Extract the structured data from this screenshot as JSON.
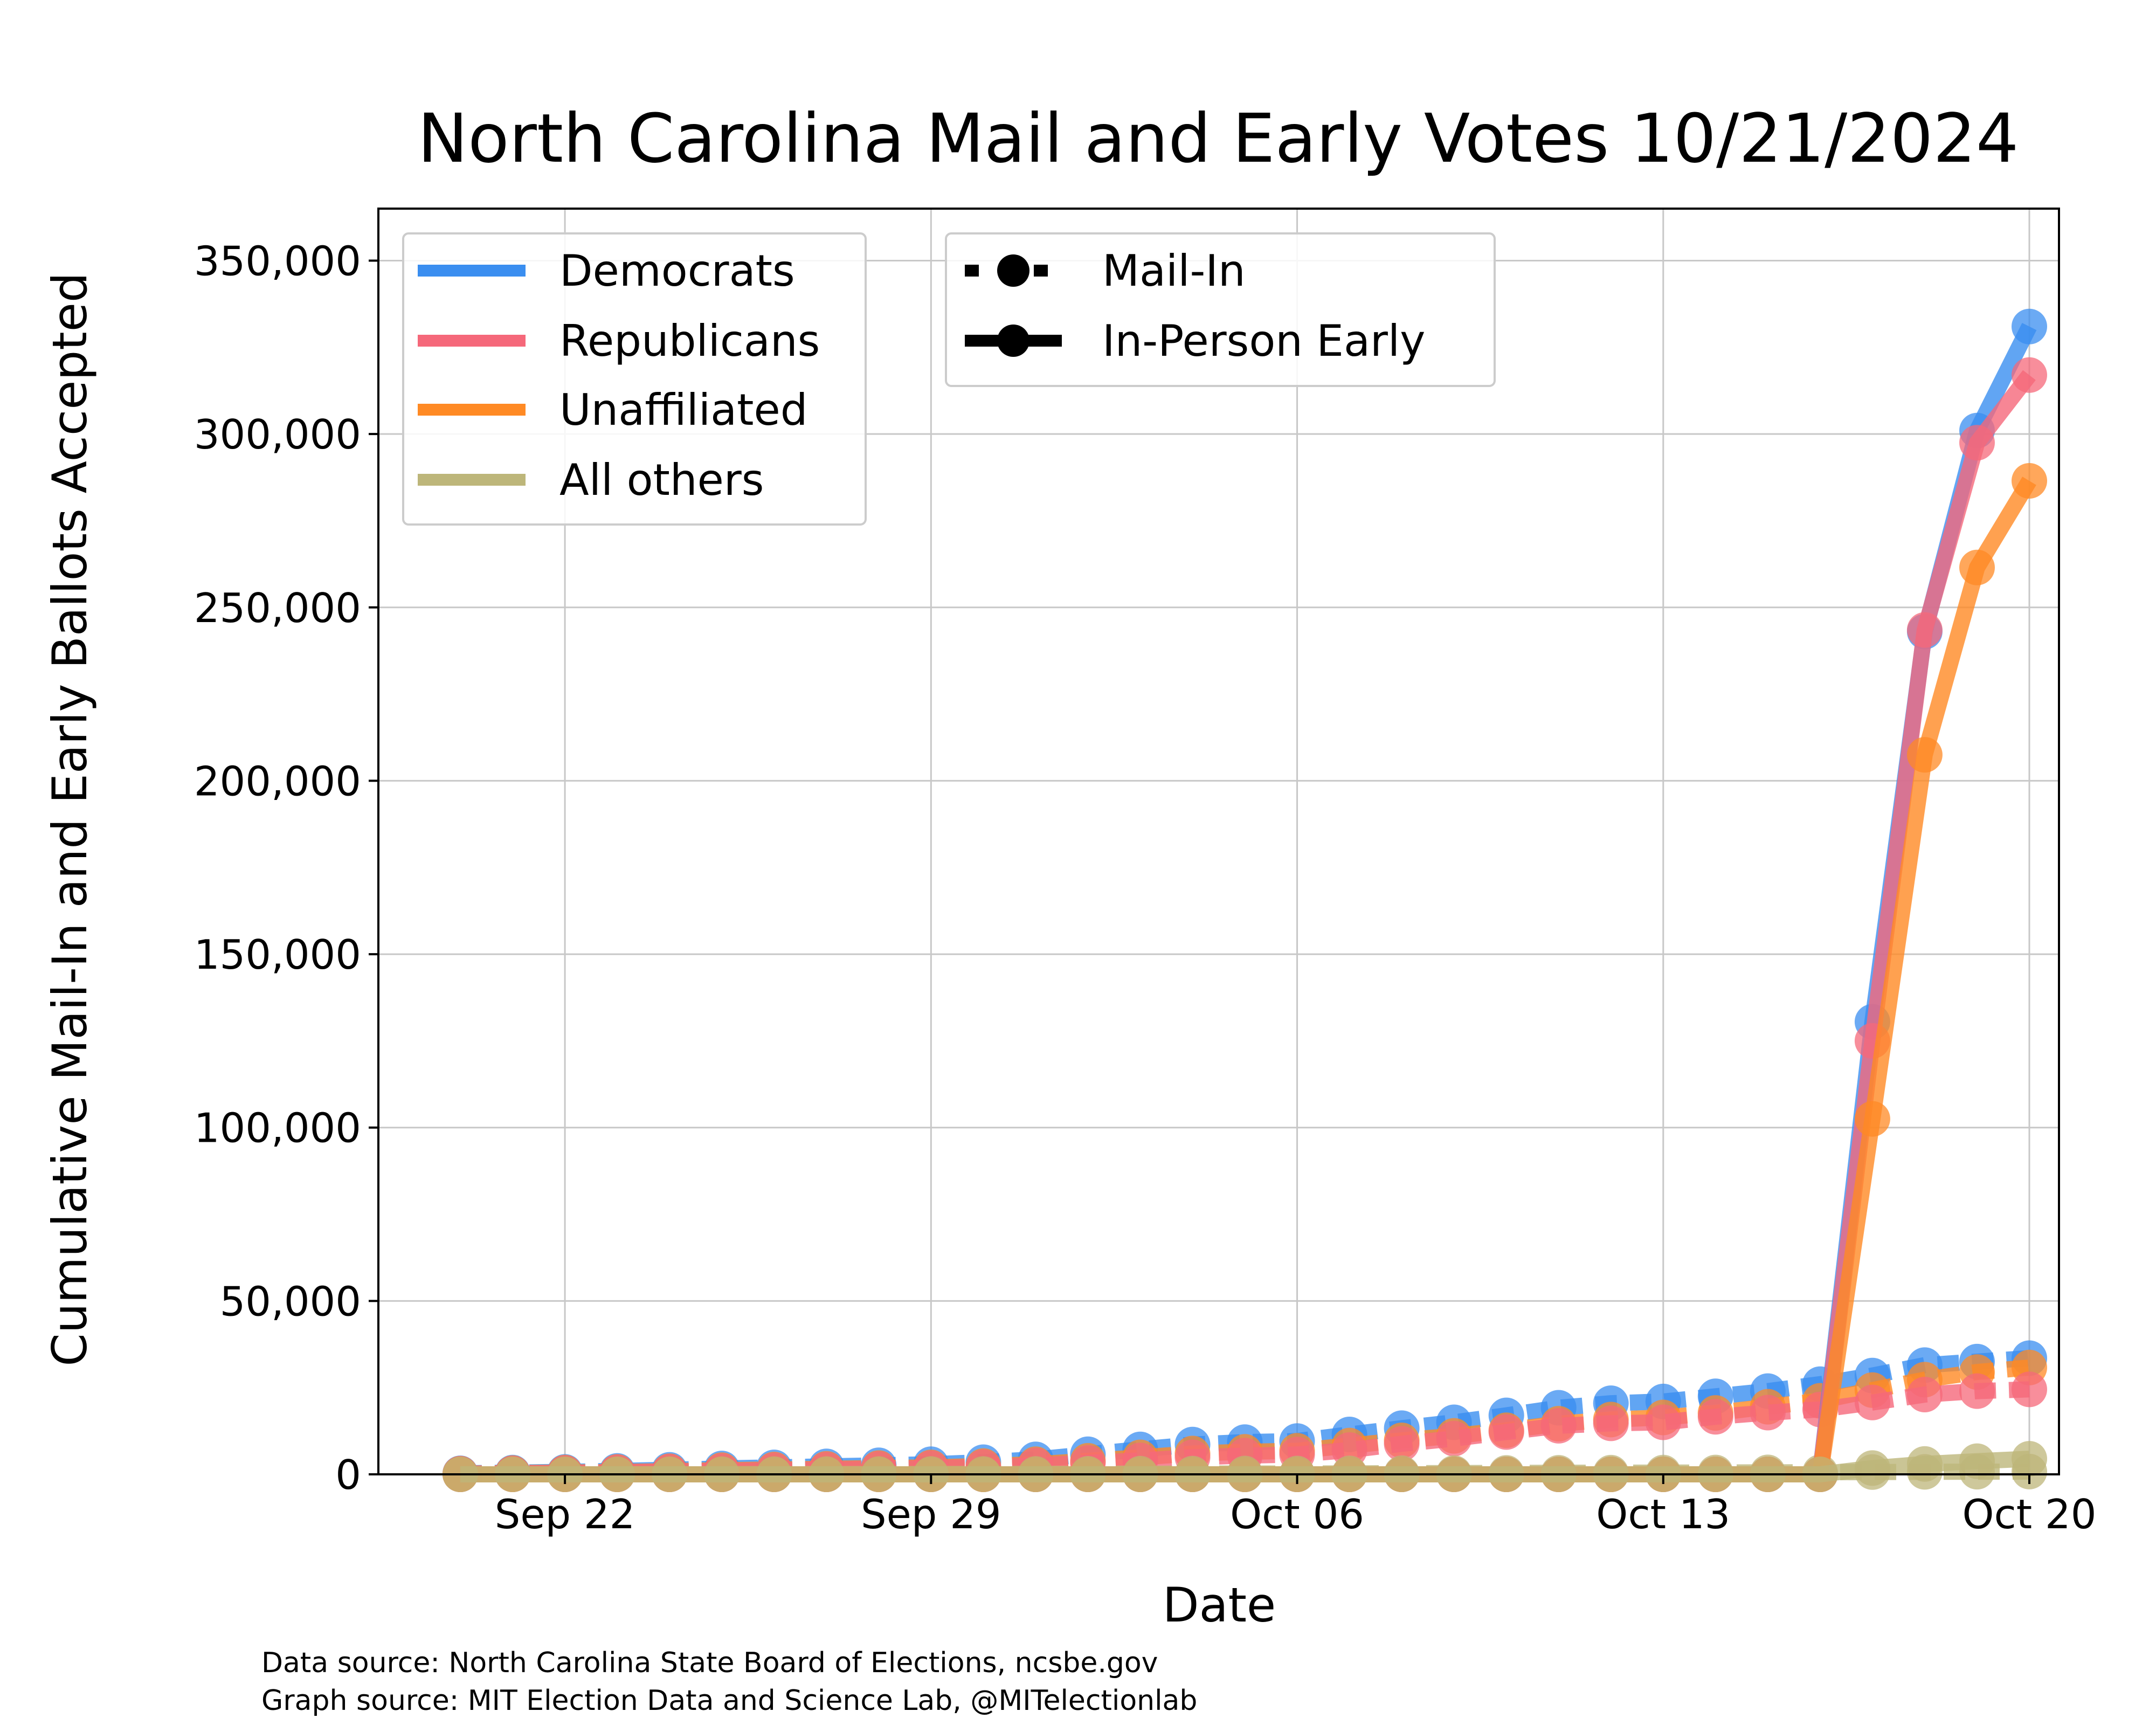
{
  "chart_data": {
    "type": "line",
    "title": "North Carolina Mail and Early Votes 10/21/2024",
    "xlabel": "Date",
    "ylabel": "Cumulative Mail-In and Early Ballots Accepted",
    "ylim": [
      0,
      365000
    ],
    "xlim": [
      "2024-09-19",
      "2024-10-20"
    ],
    "yticks": [
      0,
      50000,
      100000,
      150000,
      200000,
      250000,
      300000,
      350000
    ],
    "ytick_labels": [
      "0",
      "50,000",
      "100,000",
      "150,000",
      "200,000",
      "250,000",
      "300,000",
      "350,000"
    ],
    "xticks": [
      "2024-09-22",
      "2024-09-29",
      "2024-10-06",
      "2024-10-13",
      "2024-10-20"
    ],
    "xtick_labels": [
      "Sep 22",
      "Sep 29",
      "Oct 06",
      "Oct 13",
      "Oct 20"
    ],
    "grid": true,
    "colors": {
      "Democrats": "#3a8ef0",
      "Republicans": "#f5687a",
      "Unaffiliated": "#ff8a24",
      "All others": "#bdb67a"
    },
    "mail_dates": [
      "2024-09-20",
      "2024-09-21",
      "2024-09-22",
      "2024-09-23",
      "2024-09-24",
      "2024-09-25",
      "2024-09-26",
      "2024-09-27",
      "2024-09-28",
      "2024-09-29",
      "2024-09-30",
      "2024-10-01",
      "2024-10-02",
      "2024-10-03",
      "2024-10-04",
      "2024-10-05",
      "2024-10-06",
      "2024-10-07",
      "2024-10-08",
      "2024-10-09",
      "2024-10-10",
      "2024-10-11",
      "2024-10-12",
      "2024-10-13",
      "2024-10-14",
      "2024-10-15",
      "2024-10-16",
      "2024-10-17",
      "2024-10-18",
      "2024-10-19",
      "2024-10-20"
    ],
    "early_dates": [
      "2024-09-20",
      "2024-09-21",
      "2024-09-22",
      "2024-09-23",
      "2024-09-24",
      "2024-09-25",
      "2024-09-26",
      "2024-09-27",
      "2024-09-28",
      "2024-09-29",
      "2024-09-30",
      "2024-10-01",
      "2024-10-02",
      "2024-10-03",
      "2024-10-04",
      "2024-10-05",
      "2024-10-06",
      "2024-10-07",
      "2024-10-08",
      "2024-10-09",
      "2024-10-10",
      "2024-10-11",
      "2024-10-12",
      "2024-10-13",
      "2024-10-14",
      "2024-10-15",
      "2024-10-16",
      "2024-10-17",
      "2024-10-18",
      "2024-10-19",
      "2024-10-20"
    ],
    "series": [
      {
        "name": "Democrats",
        "kind": "Mail-In",
        "values": [
          300,
          500,
          700,
          1000,
          1300,
          1700,
          2000,
          2300,
          2600,
          2900,
          3500,
          4300,
          5800,
          7200,
          8600,
          9300,
          9600,
          11500,
          13300,
          15000,
          17000,
          19200,
          20500,
          21000,
          22500,
          24000,
          26000,
          28500,
          31500,
          32500,
          33500
        ]
      },
      {
        "name": "Unaffiliated",
        "kind": "Mail-In",
        "values": [
          200,
          350,
          500,
          700,
          900,
          1200,
          1400,
          1600,
          1800,
          2000,
          2400,
          2900,
          3900,
          4900,
          6000,
          6500,
          6800,
          8300,
          9800,
          11100,
          12700,
          14600,
          15800,
          16400,
          17700,
          19500,
          21200,
          24300,
          27300,
          29500,
          30800
        ]
      },
      {
        "name": "Republicans",
        "kind": "Mail-In",
        "values": [
          150,
          250,
          400,
          600,
          800,
          1000,
          1200,
          1400,
          1600,
          1800,
          2100,
          2600,
          3300,
          4000,
          4900,
          5400,
          5700,
          7000,
          8800,
          10300,
          12200,
          14000,
          14700,
          15000,
          16600,
          17800,
          18700,
          20700,
          23000,
          24000,
          24500
        ]
      },
      {
        "name": "All others",
        "kind": "Mail-In",
        "values": [
          10,
          15,
          20,
          30,
          40,
          50,
          60,
          70,
          80,
          90,
          100,
          120,
          150,
          180,
          210,
          230,
          240,
          280,
          320,
          360,
          400,
          450,
          480,
          500,
          530,
          560,
          600,
          660,
          720,
          760,
          800
        ]
      },
      {
        "name": "Democrats",
        "kind": "In-Person Early",
        "values": [
          0,
          0,
          0,
          0,
          0,
          0,
          0,
          0,
          0,
          0,
          0,
          0,
          0,
          0,
          0,
          0,
          0,
          0,
          0,
          0,
          0,
          0,
          0,
          0,
          0,
          0,
          0,
          130500,
          243000,
          301000,
          331000
        ]
      },
      {
        "name": "Republicans",
        "kind": "In-Person Early",
        "values": [
          0,
          0,
          0,
          0,
          0,
          0,
          0,
          0,
          0,
          0,
          0,
          0,
          0,
          0,
          0,
          0,
          0,
          0,
          0,
          0,
          0,
          0,
          0,
          0,
          0,
          0,
          0,
          125000,
          243500,
          297500,
          317000
        ]
      },
      {
        "name": "Unaffiliated",
        "kind": "In-Person Early",
        "values": [
          0,
          0,
          0,
          0,
          0,
          0,
          0,
          0,
          0,
          0,
          0,
          0,
          0,
          0,
          0,
          0,
          0,
          0,
          0,
          0,
          0,
          0,
          0,
          0,
          0,
          0,
          0,
          102500,
          207500,
          261500,
          286500
        ]
      },
      {
        "name": "All others",
        "kind": "In-Person Early",
        "values": [
          0,
          0,
          0,
          0,
          0,
          0,
          0,
          0,
          0,
          0,
          0,
          0,
          0,
          0,
          0,
          0,
          0,
          0,
          0,
          0,
          0,
          0,
          0,
          0,
          0,
          0,
          0,
          1800,
          3000,
          3800,
          4500
        ]
      }
    ],
    "legend_parties": {
      "placement": "top-left",
      "entries": [
        "Democrats",
        "Republicans",
        "Unaffiliated",
        "All others"
      ]
    },
    "legend_styles": {
      "placement": "top-center",
      "entries": [
        "Mail-In",
        "In-Person Early"
      ]
    }
  },
  "source": {
    "line1": "Data source: North Carolina State Board of Elections, ncsbe.gov",
    "line2": "Graph source: MIT Election Data and Science Lab, @MITelectionlab"
  }
}
